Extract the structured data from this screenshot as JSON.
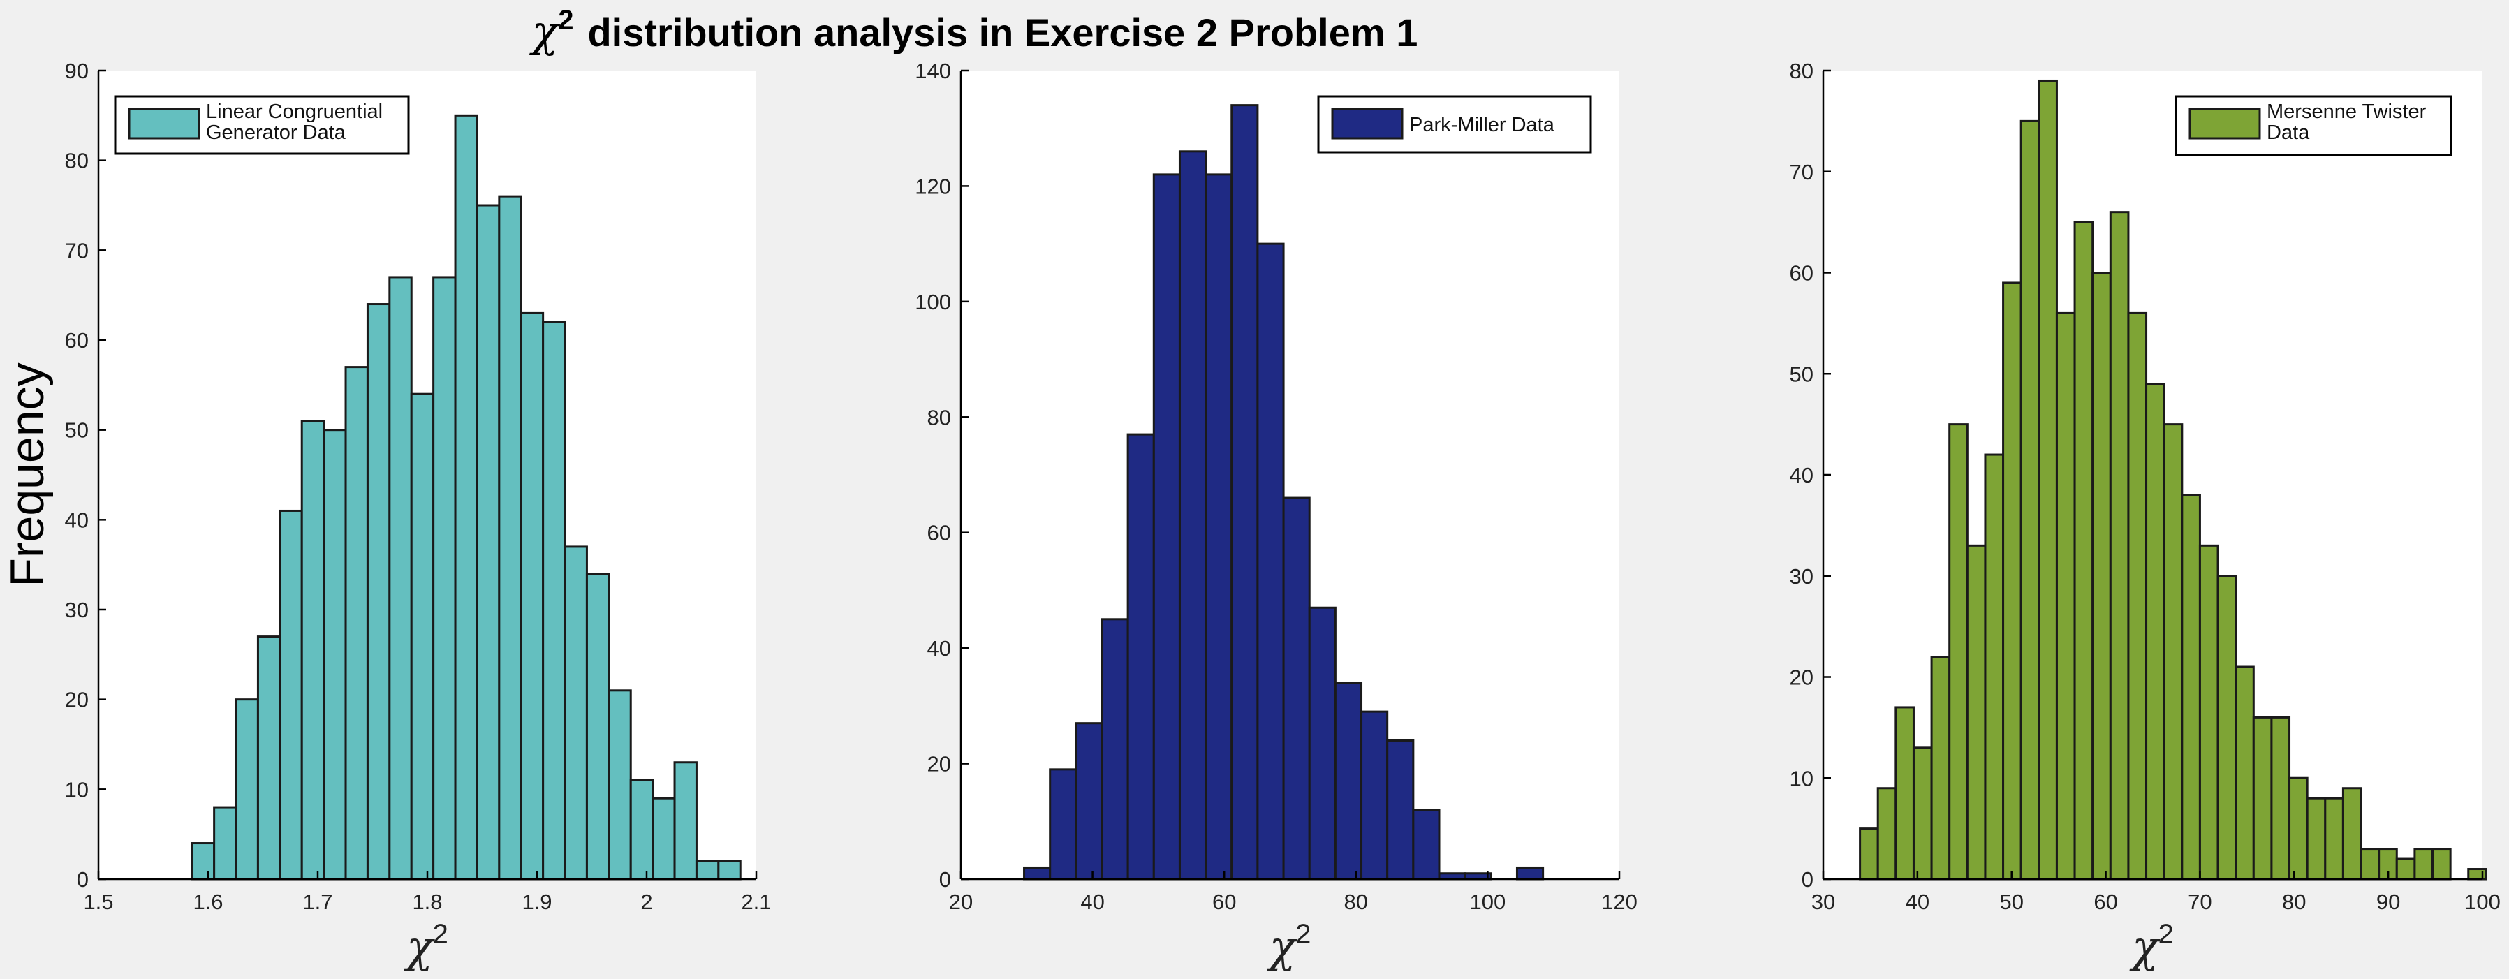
{
  "figure": {
    "title": "distribution analysis in Exercise 2 Problem 1",
    "title_symbol": "χ",
    "title_sup": "2",
    "ylabel": "Frequency"
  },
  "chart_data": [
    {
      "type": "bar",
      "legend": [
        "Linear Congruential",
        "Generator Data"
      ],
      "legend_placement": "top-left",
      "color": "#64bfbf",
      "xlabel_symbol": "χ",
      "xlabel_sup": "2",
      "xlim": [
        1.5,
        2.1
      ],
      "ylim": [
        0,
        90
      ],
      "xticks": [
        "1.5",
        "1.6",
        "1.7",
        "1.8",
        "1.9",
        "2",
        "2.1"
      ],
      "yticks": [
        "0",
        "10",
        "20",
        "30",
        "40",
        "50",
        "60",
        "70",
        "80",
        "90"
      ],
      "bin_start": 1.5855,
      "bin_width": 0.02,
      "values": [
        4,
        8,
        20,
        27,
        41,
        51,
        50,
        57,
        64,
        67,
        54,
        67,
        85,
        75,
        76,
        63,
        62,
        37,
        34,
        21,
        11,
        9,
        13,
        2,
        2
      ]
    },
    {
      "type": "bar",
      "legend": [
        "Park-Miller Data"
      ],
      "legend_placement": "top-right",
      "color": "#1f2a84",
      "xlabel_symbol": "χ",
      "xlabel_sup": "2",
      "xlim": [
        20,
        120
      ],
      "ylim": [
        0,
        140
      ],
      "xticks": [
        "20",
        "40",
        "60",
        "80",
        "100",
        "120"
      ],
      "yticks": [
        "0",
        "20",
        "40",
        "60",
        "80",
        "100",
        "120",
        "140"
      ],
      "bin_start": 29.6,
      "bin_width": 3.94,
      "values": [
        2,
        19,
        27,
        45,
        77,
        122,
        126,
        122,
        134,
        110,
        66,
        47,
        34,
        29,
        24,
        12,
        1,
        1,
        0,
        2
      ]
    },
    {
      "type": "bar",
      "legend": [
        "Mersenne Twister",
        "Data"
      ],
      "legend_placement": "top-right",
      "color": "#7ea435",
      "xlabel_symbol": "χ",
      "xlabel_sup": "2",
      "xlim": [
        30,
        100
      ],
      "ylim": [
        0,
        80
      ],
      "xticks": [
        "30",
        "40",
        "50",
        "60",
        "70",
        "80",
        "90",
        "100"
      ],
      "yticks": [
        "0",
        "10",
        "20",
        "30",
        "40",
        "50",
        "60",
        "70",
        "80"
      ],
      "bin_start": 33.9,
      "bin_width": 1.9,
      "values": [
        5,
        9,
        17,
        13,
        22,
        45,
        33,
        42,
        59,
        75,
        79,
        56,
        65,
        60,
        66,
        56,
        49,
        45,
        38,
        33,
        30,
        21,
        16,
        16,
        10,
        8,
        8,
        9,
        3,
        3,
        2,
        3,
        3,
        0,
        1
      ]
    }
  ]
}
